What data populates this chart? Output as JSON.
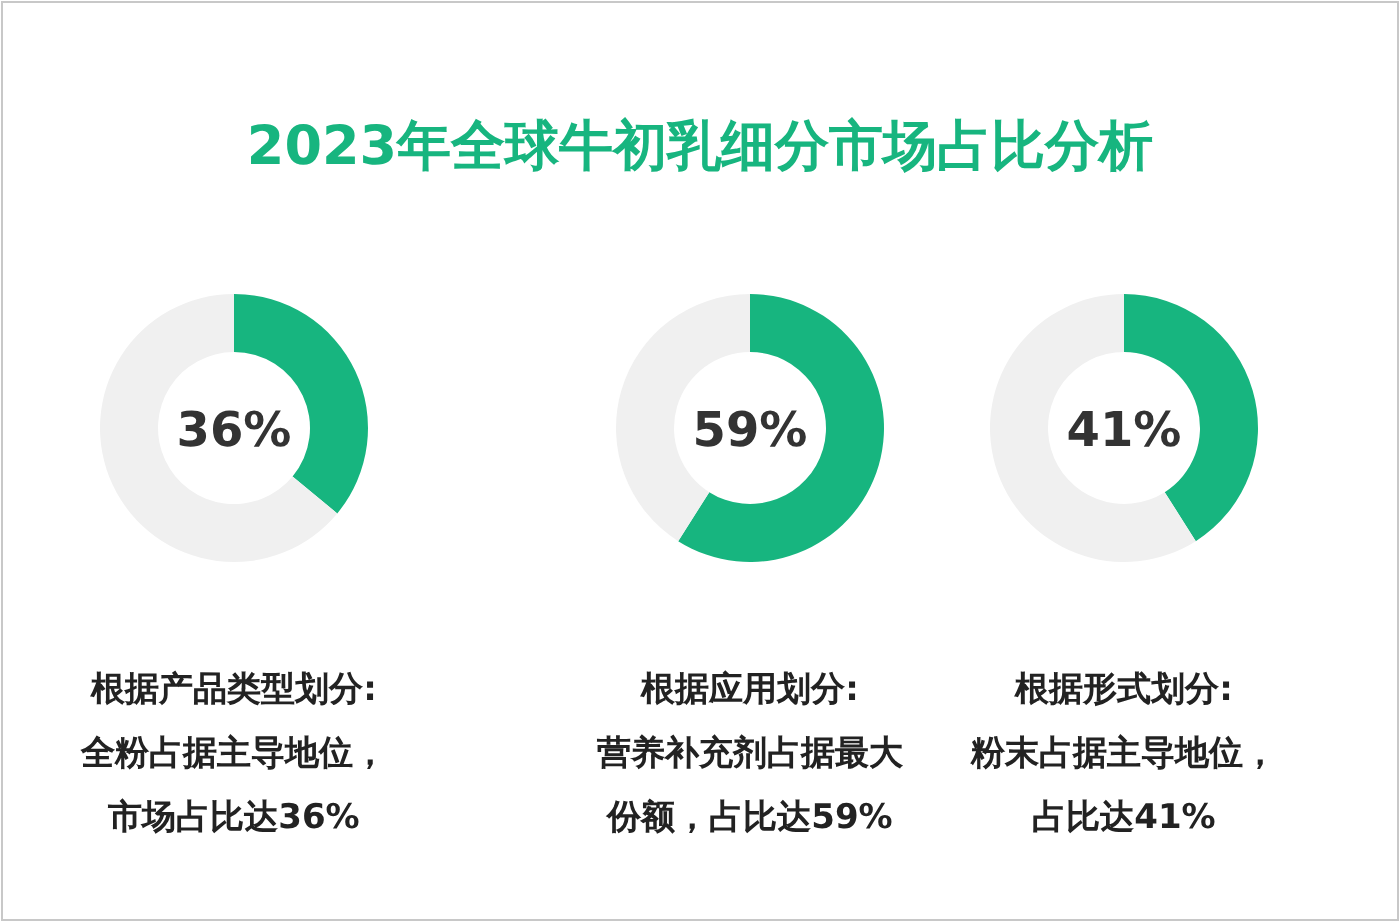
{
  "chart_data": [
    {
      "type": "other",
      "title": "2023年全球牛初乳细分市场占比分析"
    },
    {
      "type": "donut",
      "categories": [
        null,
        null
      ],
      "values": [
        36,
        64
      ],
      "colors": [
        "#17b57f",
        "#f0f0f0"
      ],
      "annotations": [
        "36%",
        "根据产品类型划分:",
        "全粉占据主导地位，",
        "市场占比达36%"
      ]
    },
    {
      "type": "donut",
      "categories": [
        null,
        null
      ],
      "values": [
        59,
        41
      ],
      "colors": [
        "#17b57f",
        "#f0f0f0"
      ],
      "annotations": [
        "59%",
        "根据应用划分:",
        "营养补充剂占据最大",
        "份额，占比达59%"
      ]
    },
    {
      "type": "donut",
      "categories": [
        null,
        null
      ],
      "values": [
        41,
        59
      ],
      "colors": [
        "#17b57f",
        "#f0f0f0"
      ],
      "annotations": [
        "41%",
        "根据形式划分:",
        "粉末占据主导地位，",
        "占比达41%"
      ]
    }
  ]
}
